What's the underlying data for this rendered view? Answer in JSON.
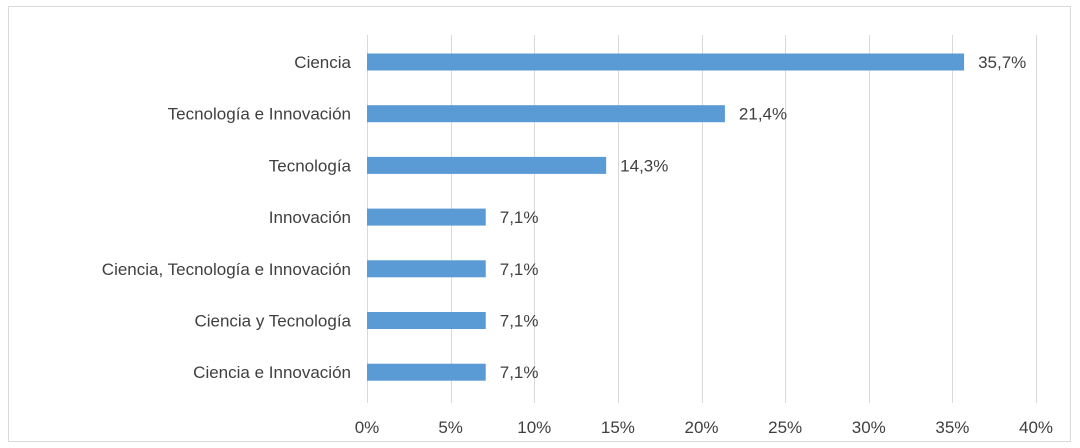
{
  "chart_data": {
    "type": "bar",
    "orientation": "horizontal",
    "categories": [
      "Ciencia",
      "Tecnología e Innovación",
      "Tecnología",
      "Innovación",
      "Ciencia, Tecnología e Innovación",
      "Ciencia y Tecnología",
      "Ciencia e Innovación"
    ],
    "values": [
      35.7,
      21.4,
      14.3,
      7.1,
      7.1,
      7.1,
      7.1
    ],
    "data_labels": [
      "35,7%",
      "21,4%",
      "14,3%",
      "7,1%",
      "7,1%",
      "7,1%",
      "7,1%"
    ],
    "xlim": [
      0,
      40
    ],
    "x_ticks": [
      0,
      5,
      10,
      15,
      20,
      25,
      30,
      35,
      40
    ],
    "x_tick_labels": [
      "0%",
      "5%",
      "10%",
      "15%",
      "20%",
      "25%",
      "30%",
      "35%",
      "40%"
    ],
    "title": "",
    "xlabel": "",
    "ylabel": "",
    "grid": "vertical",
    "legend": "none",
    "colors": {
      "bar": "#5b9bd5",
      "grid": "#d9d9d9",
      "text": "#404040",
      "border": "#d9d9d9"
    }
  }
}
